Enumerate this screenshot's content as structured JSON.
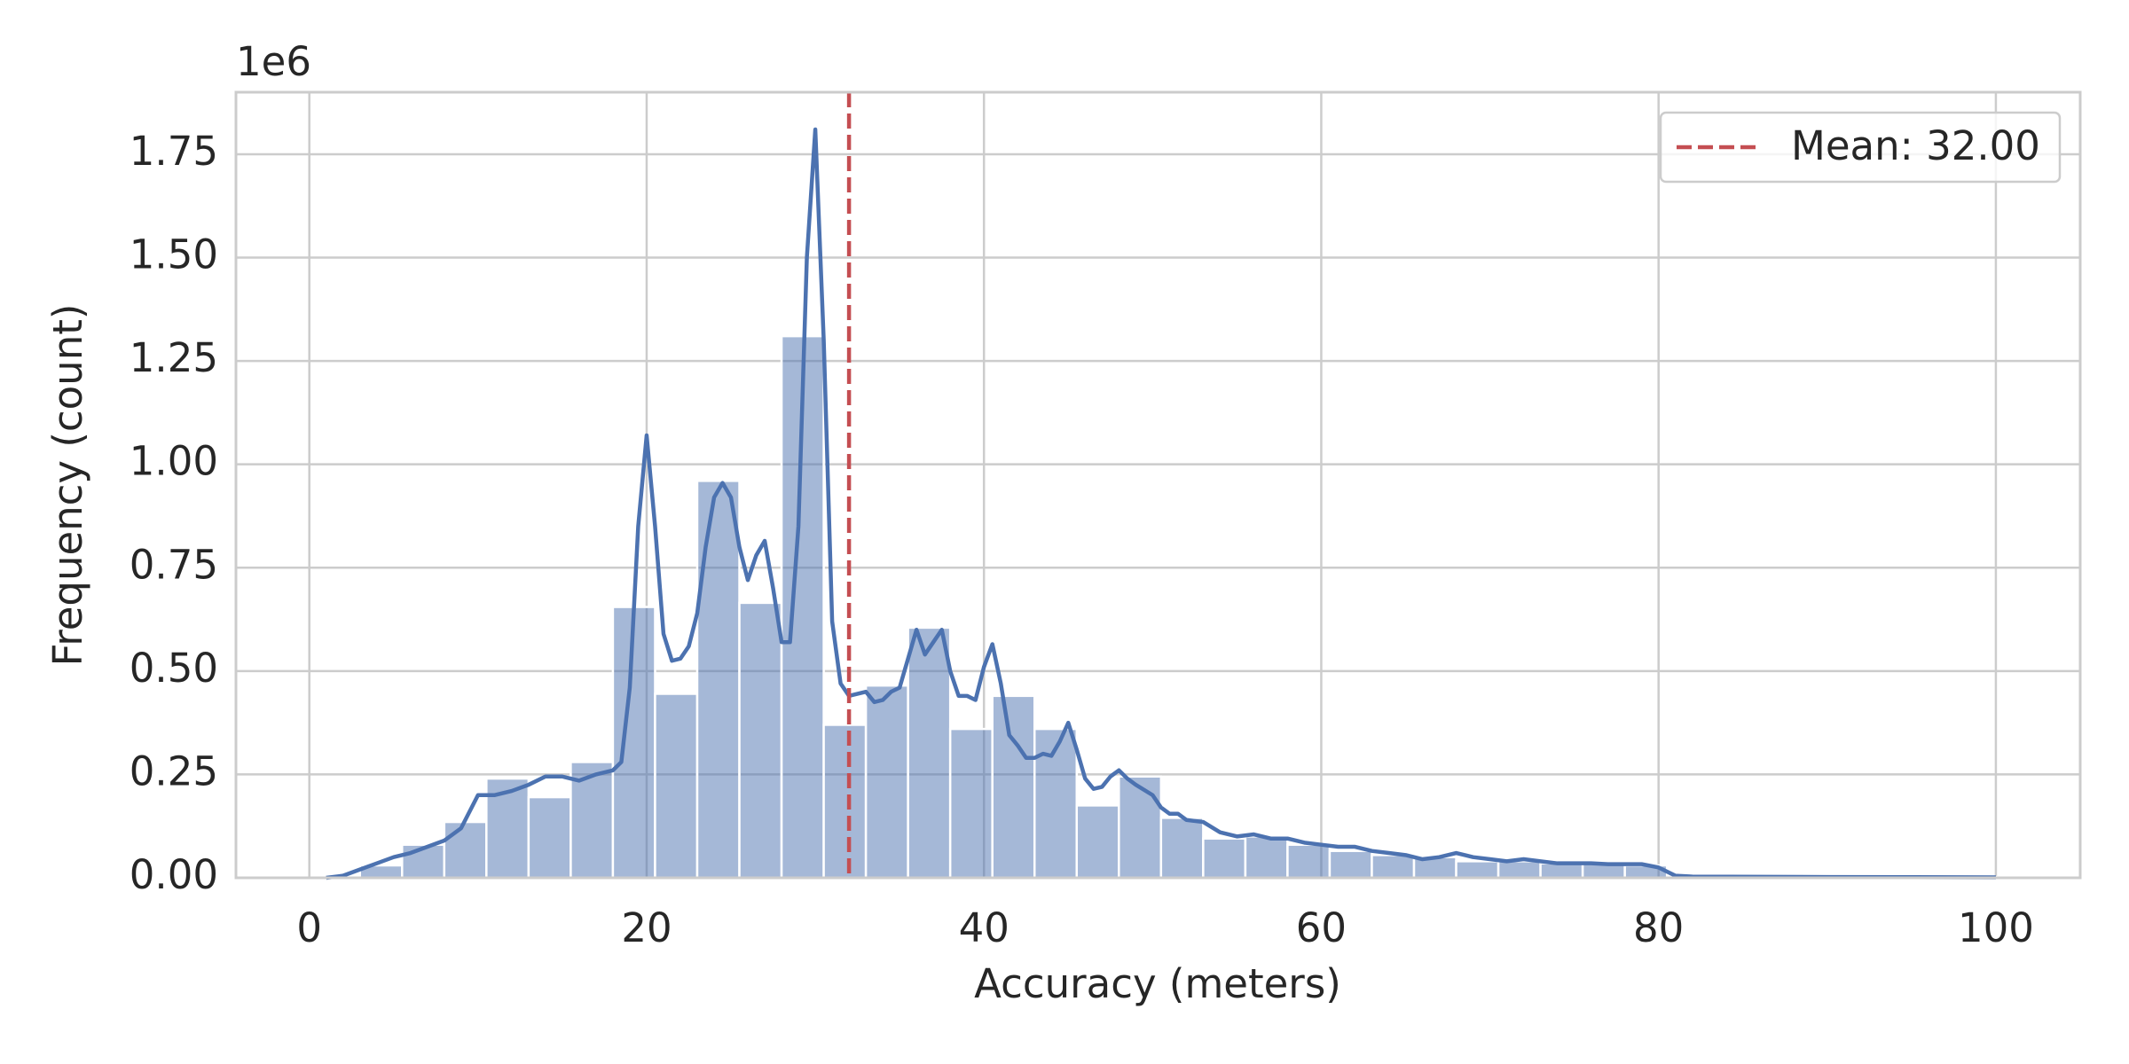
{
  "chart_data": {
    "type": "histogram",
    "xlabel": "Accuracy (meters)",
    "ylabel": "Frequency (count)",
    "y_offset_label": "1e6",
    "bins": [
      0.5,
      3,
      5.5,
      8,
      10.5,
      13,
      15.5,
      18,
      20.5,
      23,
      25.5,
      28,
      30.5,
      33,
      35.5,
      38,
      40.5,
      43,
      45.5,
      48,
      50.5,
      53,
      55.5,
      58,
      60.5,
      63,
      65.5,
      68,
      70.5,
      73,
      75.5,
      78,
      80.5,
      83,
      85.5,
      88,
      90.5,
      93,
      95.5,
      98,
      100.5
    ],
    "values": [
      0.005,
      0.03,
      0.08,
      0.135,
      0.24,
      0.195,
      0.28,
      0.655,
      0.445,
      0.96,
      0.665,
      1.31,
      0.37,
      0.465,
      0.605,
      0.36,
      0.44,
      0.36,
      0.175,
      0.245,
      0.145,
      0.095,
      0.1,
      0.08,
      0.065,
      0.055,
      0.05,
      0.04,
      0.04,
      0.035,
      0.035,
      0.03,
      0.002,
      0.002,
      0.002,
      0.002,
      0.002,
      0.002,
      0.002,
      0.002
    ],
    "color": "#4c72b0",
    "kde": {
      "color": "#4c72b0",
      "x": [
        1,
        2,
        3,
        4,
        5,
        6,
        7,
        8,
        9,
        10,
        11,
        12,
        13,
        14,
        15,
        16,
        17,
        18,
        18.5,
        19,
        19.5,
        20,
        20.5,
        21,
        21.5,
        22,
        22.5,
        23,
        23.5,
        24,
        24.5,
        25,
        25.5,
        26,
        26.5,
        27,
        27.5,
        28,
        28.5,
        29,
        29.5,
        30,
        30.5,
        31,
        31.5,
        32,
        33,
        33.5,
        34,
        34.5,
        35,
        35.5,
        36,
        36.5,
        37,
        37.5,
        38,
        38.5,
        39,
        39.5,
        40,
        40.5,
        41,
        41.5,
        42,
        42.5,
        43,
        43.5,
        44,
        44.5,
        45,
        45.5,
        46,
        46.5,
        47,
        47.5,
        48,
        48.5,
        49,
        50,
        50.5,
        51,
        51.5,
        52,
        53,
        54,
        55,
        56,
        57,
        58,
        59,
        60,
        61,
        62,
        63,
        64,
        65,
        66,
        67,
        68,
        69,
        70,
        71,
        72,
        73,
        74,
        75,
        76,
        77,
        78,
        79,
        80,
        81,
        82,
        90,
        100
      ],
      "values": [
        0.0,
        0.005,
        0.02,
        0.035,
        0.05,
        0.06,
        0.075,
        0.09,
        0.12,
        0.2,
        0.2,
        0.21,
        0.225,
        0.245,
        0.245,
        0.235,
        0.25,
        0.26,
        0.28,
        0.46,
        0.85,
        1.07,
        0.85,
        0.59,
        0.525,
        0.53,
        0.56,
        0.64,
        0.8,
        0.92,
        0.955,
        0.92,
        0.8,
        0.72,
        0.78,
        0.815,
        0.7,
        0.57,
        0.57,
        0.85,
        1.5,
        1.81,
        1.3,
        0.62,
        0.47,
        0.44,
        0.45,
        0.425,
        0.43,
        0.45,
        0.46,
        0.53,
        0.6,
        0.54,
        0.57,
        0.6,
        0.5,
        0.44,
        0.44,
        0.43,
        0.51,
        0.565,
        0.47,
        0.345,
        0.32,
        0.29,
        0.29,
        0.3,
        0.295,
        0.33,
        0.375,
        0.31,
        0.24,
        0.215,
        0.22,
        0.245,
        0.26,
        0.24,
        0.225,
        0.2,
        0.17,
        0.155,
        0.155,
        0.14,
        0.135,
        0.11,
        0.1,
        0.105,
        0.095,
        0.095,
        0.085,
        0.08,
        0.075,
        0.075,
        0.065,
        0.06,
        0.055,
        0.045,
        0.05,
        0.06,
        0.05,
        0.045,
        0.04,
        0.045,
        0.04,
        0.035,
        0.035,
        0.035,
        0.033,
        0.033,
        0.033,
        0.025,
        0.005,
        0.003,
        0.002,
        0.001
      ]
    },
    "mean": {
      "value": 32,
      "label": "Mean: 32.00",
      "color": "#c44e52"
    },
    "xlim": [
      -4.35,
      105
    ],
    "ylim": [
      0,
      1.9
    ],
    "xticks": [
      0,
      20,
      40,
      60,
      80,
      100
    ],
    "yticks": [
      {
        "value": 0,
        "label": "0.00"
      },
      0.25,
      {
        "value": 0.5,
        "label": "0.50"
      },
      0.75,
      {
        "value": 1,
        "label": "1.00"
      },
      1.25,
      {
        "value": 1.5,
        "label": "1.50"
      },
      1.75
    ],
    "grid": true,
    "legend": "upper right"
  }
}
